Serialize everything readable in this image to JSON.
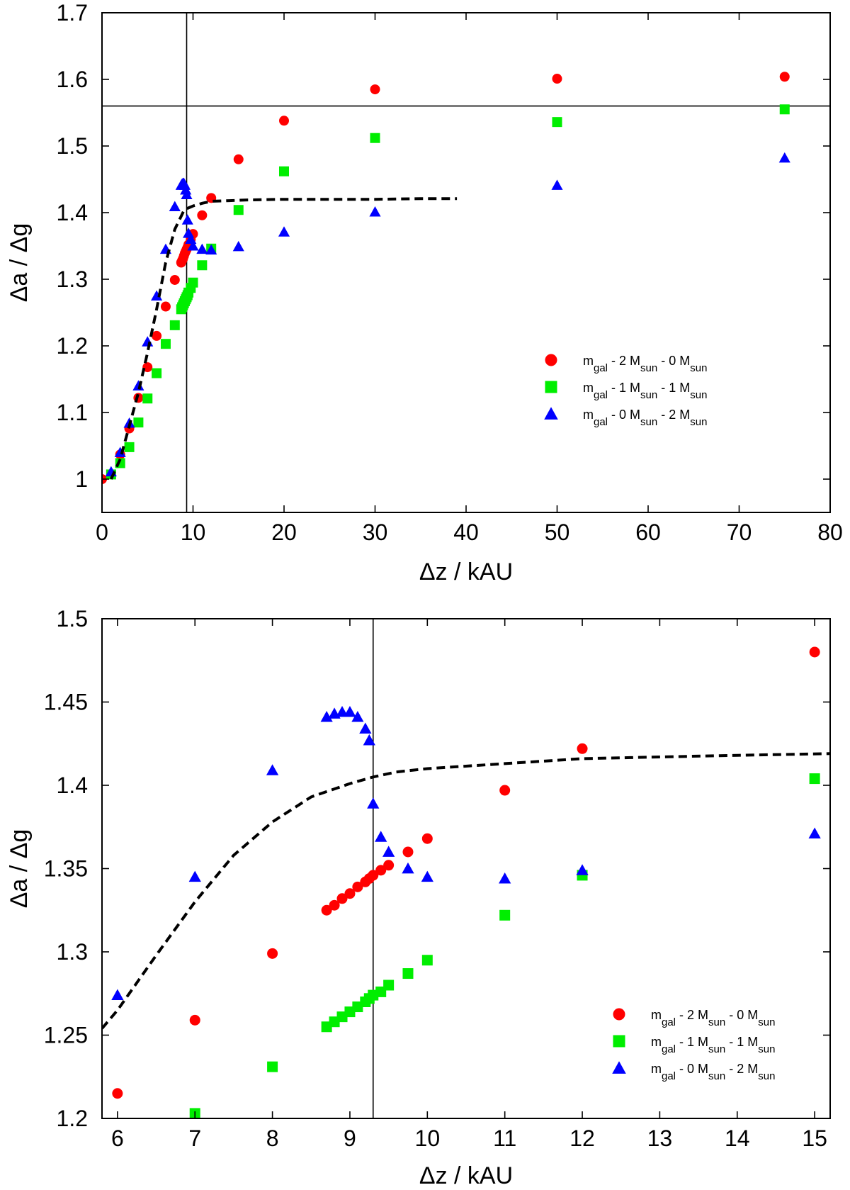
{
  "chart_data": [
    {
      "type": "scatter",
      "xlabel": "Δz / kAU",
      "ylabel": "Δa / Δg",
      "xlim": [
        0,
        80
      ],
      "ylim": [
        0.95,
        1.7
      ],
      "xticks": [
        "0",
        "10",
        "20",
        "30",
        "40",
        "50",
        "60",
        "70",
        "80"
      ],
      "yticks": [
        "1",
        "1.1",
        "1.2",
        "1.3",
        "1.4",
        "1.5",
        "1.6",
        "1.7"
      ],
      "grid": false,
      "legend_position": "center-right",
      "reference_lines": {
        "vertical_x": 9.3,
        "horizontal_y": 1.56
      },
      "series": [
        {
          "name": "m_gal - 2 M_sun - 0 M_sun",
          "color": "#ff0000",
          "marker": "circle",
          "x": [
            0,
            2,
            3,
            4,
            5,
            6,
            7,
            8,
            8.7,
            8.8,
            8.9,
            9.0,
            9.1,
            9.2,
            9.3,
            9.4,
            9.5,
            9.75,
            10,
            11,
            12,
            15,
            20,
            30,
            50,
            75
          ],
          "y": [
            1.0,
            1.037,
            1.076,
            1.122,
            1.168,
            1.215,
            1.259,
            1.299,
            1.325,
            1.328,
            1.331,
            1.335,
            1.339,
            1.342,
            1.345,
            1.348,
            1.352,
            1.36,
            1.368,
            1.396,
            1.422,
            1.48,
            1.538,
            1.585,
            1.601,
            1.604
          ]
        },
        {
          "name": "m_gal - 1 M_sun - 1 M_sun",
          "color": "#00ee00",
          "marker": "square",
          "x": [
            1,
            2,
            3,
            4,
            5,
            6,
            7,
            8,
            8.7,
            8.8,
            8.9,
            9.0,
            9.1,
            9.2,
            9.3,
            9.4,
            9.5,
            9.75,
            10,
            11,
            12,
            15,
            20,
            30,
            50,
            75
          ],
          "y": [
            1.007,
            1.024,
            1.048,
            1.085,
            1.121,
            1.159,
            1.203,
            1.231,
            1.255,
            1.258,
            1.261,
            1.264,
            1.267,
            1.27,
            1.273,
            1.276,
            1.28,
            1.287,
            1.295,
            1.321,
            1.346,
            1.404,
            1.462,
            1.512,
            1.536,
            1.555
          ]
        },
        {
          "name": "m_gal - 0 M_sun - 2 M_sun",
          "color": "#0000ff",
          "marker": "triangle",
          "x": [
            1,
            2,
            3,
            4,
            5,
            6,
            7,
            8,
            8.7,
            8.8,
            8.9,
            9.0,
            9.1,
            9.2,
            9.3,
            9.4,
            9.5,
            9.75,
            10,
            11,
            12,
            15,
            20,
            30,
            50,
            75
          ],
          "y": [
            1.011,
            1.04,
            1.084,
            1.14,
            1.206,
            1.275,
            1.345,
            1.409,
            1.441,
            1.443,
            1.444,
            1.444,
            1.441,
            1.434,
            1.427,
            1.389,
            1.369,
            1.36,
            1.35,
            1.345,
            1.344,
            1.349,
            1.371,
            1.401,
            1.441,
            1.482
          ]
        },
        {
          "name": "",
          "color": "#000000",
          "style": "dashed-line",
          "x": [
            1,
            2,
            3,
            4,
            5,
            6,
            7,
            8,
            9,
            9.3,
            10,
            11,
            12,
            14,
            16,
            20,
            25,
            30,
            35,
            39
          ],
          "y": [
            1.0,
            1.03,
            1.08,
            1.13,
            1.19,
            1.255,
            1.325,
            1.375,
            1.403,
            1.406,
            1.41,
            1.414,
            1.417,
            1.418,
            1.419,
            1.42,
            1.42,
            1.42,
            1.421,
            1.421
          ]
        }
      ]
    },
    {
      "type": "scatter",
      "xlabel": "Δz / kAU",
      "ylabel": "Δa / Δg",
      "xlim": [
        5.8,
        15.2
      ],
      "ylim": [
        1.2,
        1.5
      ],
      "xticks": [
        "6",
        "7",
        "8",
        "9",
        "10",
        "11",
        "12",
        "13",
        "14",
        "15"
      ],
      "yticks": [
        "1.2",
        "1.25",
        "1.3",
        "1.35",
        "1.4",
        "1.45",
        "1.5"
      ],
      "grid": false,
      "legend_position": "bottom-right",
      "reference_lines": {
        "vertical_x": 9.3
      },
      "series": [
        {
          "name": "m_gal - 2 M_sun - 0 M_sun",
          "color": "#ff0000",
          "marker": "circle",
          "x": [
            6,
            7,
            8,
            8.7,
            8.8,
            8.9,
            9.0,
            9.1,
            9.2,
            9.25,
            9.3,
            9.4,
            9.5,
            9.75,
            10,
            11,
            12,
            15
          ],
          "y": [
            1.215,
            1.259,
            1.299,
            1.325,
            1.328,
            1.332,
            1.335,
            1.339,
            1.342,
            1.344,
            1.346,
            1.349,
            1.352,
            1.36,
            1.368,
            1.397,
            1.422,
            1.48
          ]
        },
        {
          "name": "m_gal - 1 M_sun - 1 M_sun",
          "color": "#00ee00",
          "marker": "square",
          "x": [
            7,
            8,
            8.7,
            8.8,
            8.9,
            9.0,
            9.1,
            9.2,
            9.25,
            9.3,
            9.4,
            9.5,
            9.75,
            10,
            11,
            12,
            15
          ],
          "y": [
            1.203,
            1.231,
            1.255,
            1.258,
            1.261,
            1.264,
            1.267,
            1.27,
            1.272,
            1.274,
            1.276,
            1.28,
            1.287,
            1.295,
            1.322,
            1.346,
            1.404
          ]
        },
        {
          "name": "m_gal - 0 M_sun - 2 M_sun",
          "color": "#0000ff",
          "marker": "triangle",
          "x": [
            6,
            7,
            8,
            8.7,
            8.8,
            8.9,
            9.0,
            9.1,
            9.2,
            9.25,
            9.3,
            9.4,
            9.5,
            9.75,
            10,
            11,
            12,
            15
          ],
          "y": [
            1.274,
            1.345,
            1.409,
            1.441,
            1.443,
            1.444,
            1.444,
            1.441,
            1.434,
            1.427,
            1.389,
            1.369,
            1.36,
            1.35,
            1.345,
            1.344,
            1.349,
            1.371
          ]
        },
        {
          "name": "",
          "color": "#000000",
          "style": "dashed-line",
          "x": [
            5.8,
            6.0,
            6.5,
            7.0,
            7.5,
            8.0,
            8.5,
            9.0,
            9.3,
            9.6,
            10,
            11,
            12,
            13,
            14,
            15.2
          ],
          "y": [
            1.254,
            1.265,
            1.298,
            1.33,
            1.358,
            1.378,
            1.393,
            1.401,
            1.405,
            1.408,
            1.41,
            1.413,
            1.416,
            1.417,
            1.418,
            1.419
          ]
        }
      ]
    }
  ]
}
